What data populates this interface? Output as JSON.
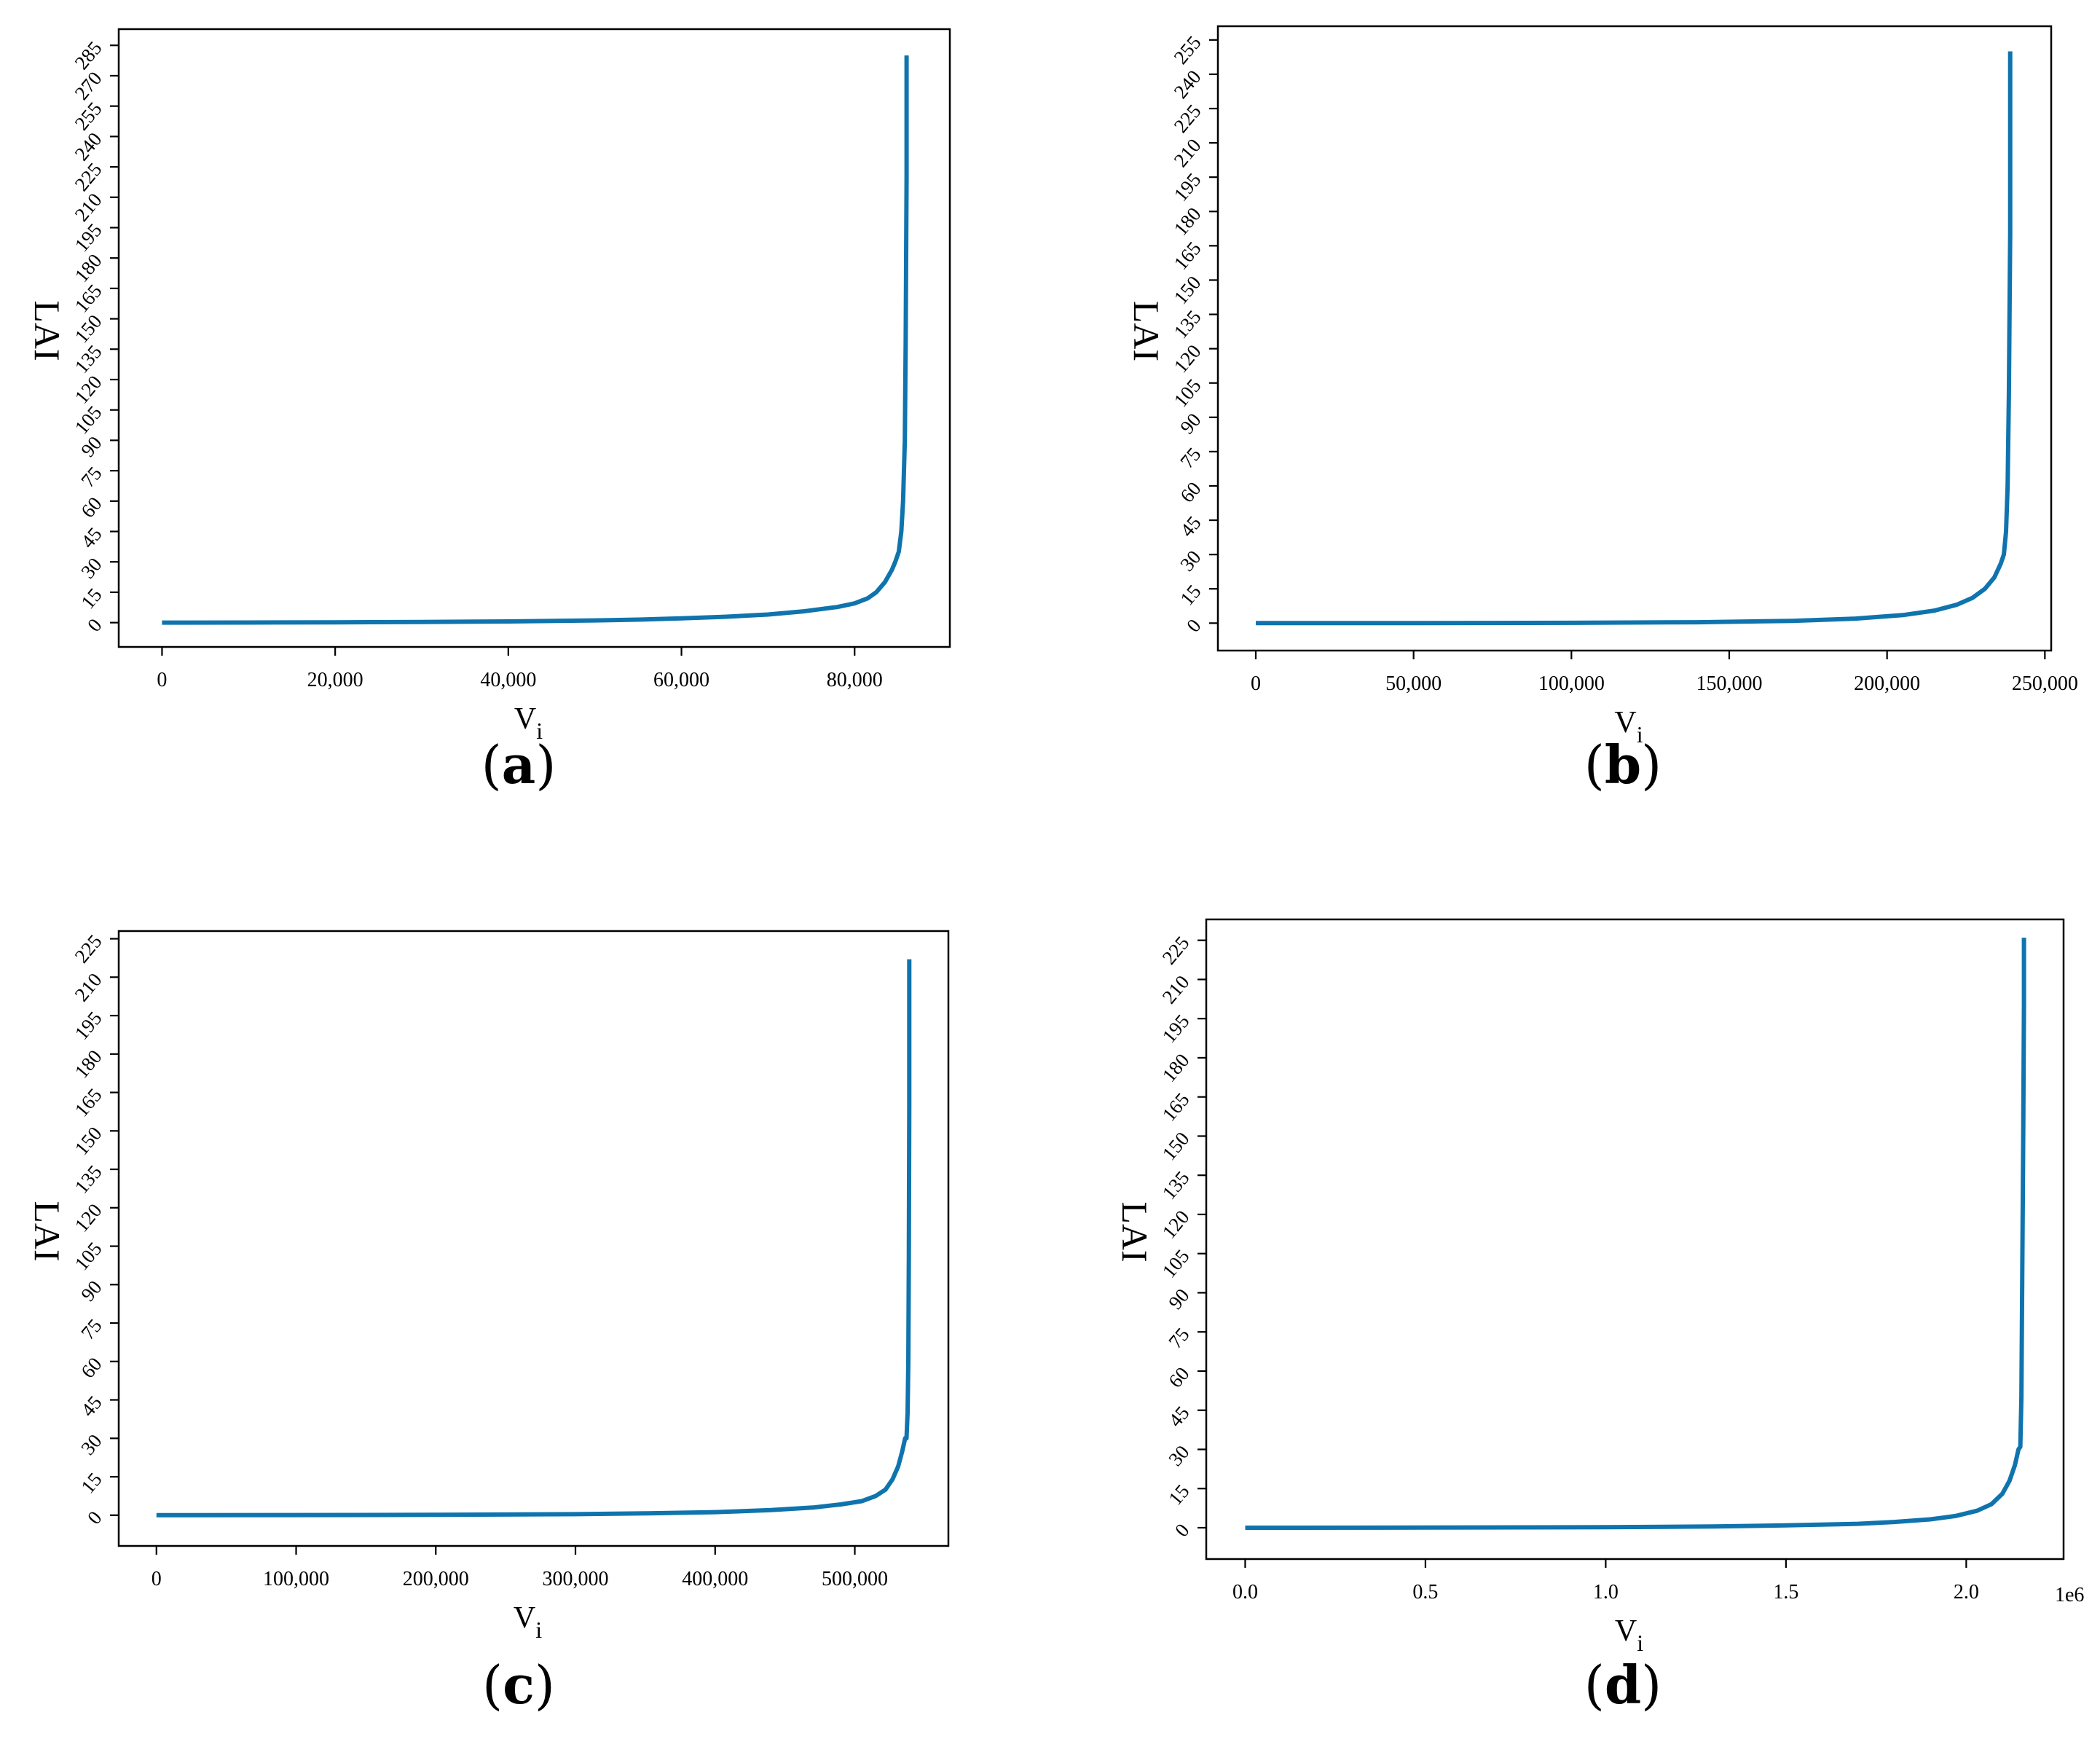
{
  "colors": {
    "line": "#0f74ad",
    "axis": "#000000",
    "background": "#ffffff"
  },
  "chart_data": [
    {
      "panel_label": "(a)",
      "type": "line",
      "xlabel_main": "V",
      "xlabel_sub": "i",
      "ylabel": "LAI",
      "x_offset_text": "",
      "xlim": [
        -5000,
        91000
      ],
      "ylim": [
        -12,
        293
      ],
      "xticks": [
        0,
        20000,
        40000,
        60000,
        80000
      ],
      "xtick_labels": [
        "0",
        "20,000",
        "40,000",
        "60,000",
        "80,000"
      ],
      "yticks": [
        0,
        15,
        30,
        45,
        60,
        75,
        90,
        105,
        120,
        135,
        150,
        165,
        180,
        195,
        210,
        225,
        240,
        255,
        270,
        285
      ],
      "ytick_labels": [
        "0",
        "15",
        "30",
        "45",
        "60",
        "75",
        "90",
        "105",
        "120",
        "135",
        "150",
        "165",
        "180",
        "195",
        "210",
        "225",
        "240",
        "255",
        "270",
        "285"
      ],
      "series": [
        {
          "x": [
            0,
            10000,
            20000,
            30000,
            40000,
            50000,
            55000,
            60000,
            65000,
            70000,
            74000,
            78000,
            80000,
            81500,
            82500,
            83500,
            84300,
            84700,
            85100,
            85400,
            85600,
            85800,
            85900,
            86000,
            86000
          ],
          "y": [
            0,
            0.05,
            0.15,
            0.3,
            0.6,
            1.1,
            1.5,
            2.1,
            2.9,
            4.0,
            5.5,
            7.7,
            9.5,
            12,
            15,
            20,
            26,
            30,
            35,
            45,
            60,
            90,
            140,
            220,
            280
          ]
        }
      ]
    },
    {
      "panel_label": "(b)",
      "type": "line",
      "xlabel_main": "V",
      "xlabel_sub": "i",
      "ylabel": "LAI",
      "x_offset_text": "",
      "xlim": [
        -12000,
        252000
      ],
      "ylim": [
        -12,
        261
      ],
      "xticks": [
        0,
        50000,
        100000,
        150000,
        200000,
        250000
      ],
      "xtick_labels": [
        "0",
        "50,000",
        "100,000",
        "150,000",
        "200,000",
        "250,000"
      ],
      "yticks": [
        0,
        15,
        30,
        45,
        60,
        75,
        90,
        105,
        120,
        135,
        150,
        165,
        180,
        195,
        210,
        225,
        240,
        255
      ],
      "ytick_labels": [
        "0",
        "15",
        "30",
        "45",
        "60",
        "75",
        "90",
        "105",
        "120",
        "135",
        "150",
        "165",
        "180",
        "195",
        "210",
        "225",
        "240",
        "255"
      ],
      "series": [
        {
          "x": [
            0,
            50000,
            100000,
            140000,
            170000,
            190000,
            205000,
            215000,
            222000,
            227000,
            231000,
            234000,
            236000,
            237000,
            237700,
            238200,
            238600,
            239000,
            239000
          ],
          "y": [
            0,
            0.05,
            0.15,
            0.4,
            1.0,
            2.0,
            3.5,
            5.5,
            8,
            11,
            15,
            20,
            26,
            30,
            40,
            60,
            100,
            170,
            250
          ]
        }
      ]
    },
    {
      "panel_label": "(c)",
      "type": "line",
      "xlabel_main": "V",
      "xlabel_sub": "i",
      "ylabel": "LAI",
      "x_offset_text": "",
      "xlim": [
        -27000,
        567000
      ],
      "ylim": [
        -12,
        228
      ],
      "xticks": [
        0,
        100000,
        200000,
        300000,
        400000,
        500000
      ],
      "xtick_labels": [
        "0",
        "100,000",
        "200,000",
        "300,000",
        "400,000",
        "500,000"
      ],
      "yticks": [
        0,
        15,
        30,
        45,
        60,
        75,
        90,
        105,
        120,
        135,
        150,
        165,
        180,
        195,
        210,
        225
      ],
      "ytick_labels": [
        "0",
        "15",
        "30",
        "45",
        "60",
        "75",
        "90",
        "105",
        "120",
        "135",
        "150",
        "165",
        "180",
        "195",
        "210",
        "225"
      ],
      "series": [
        {
          "x": [
            0,
            100000,
            200000,
            300000,
            350000,
            400000,
            440000,
            470000,
            490000,
            505000,
            515000,
            522000,
            527000,
            531000,
            534000,
            536000,
            537000,
            537800,
            538300,
            538700,
            539000,
            539000
          ],
          "y": [
            0,
            0.05,
            0.15,
            0.4,
            0.7,
            1.2,
            2.0,
            3.0,
            4.2,
            5.5,
            7.5,
            10,
            14,
            19,
            25,
            30,
            30,
            40,
            60,
            100,
            160,
            217
          ]
        }
      ]
    },
    {
      "panel_label": "(d)",
      "type": "line",
      "xlabel_main": "V",
      "xlabel_sub": "i",
      "ylabel": "LAI",
      "x_offset_text": "1e6",
      "xlim": [
        -0.108,
        2.27
      ],
      "ylim": [
        -12,
        233
      ],
      "xticks": [
        0,
        0.5,
        1.0,
        1.5,
        2.0
      ],
      "xtick_labels": [
        "0.0",
        "0.5",
        "1.0",
        "1.5",
        "2.0"
      ],
      "yticks": [
        0,
        15,
        30,
        45,
        60,
        75,
        90,
        105,
        120,
        135,
        150,
        165,
        180,
        195,
        210,
        225
      ],
      "ytick_labels": [
        "0",
        "15",
        "30",
        "45",
        "60",
        "75",
        "90",
        "105",
        "120",
        "135",
        "150",
        "165",
        "180",
        "195",
        "210",
        "225"
      ],
      "series": [
        {
          "x": [
            0,
            0.5,
            1.0,
            1.3,
            1.5,
            1.7,
            1.8,
            1.9,
            1.97,
            2.03,
            2.07,
            2.1,
            2.12,
            2.135,
            2.145,
            2.15,
            2.153,
            2.155,
            2.158,
            2.16,
            2.16
          ],
          "y": [
            0,
            0.05,
            0.2,
            0.5,
            0.9,
            1.5,
            2.2,
            3.2,
            4.5,
            6.5,
            9,
            13,
            18,
            24,
            30,
            31,
            50,
            90,
            150,
            200,
            226
          ]
        }
      ]
    }
  ]
}
